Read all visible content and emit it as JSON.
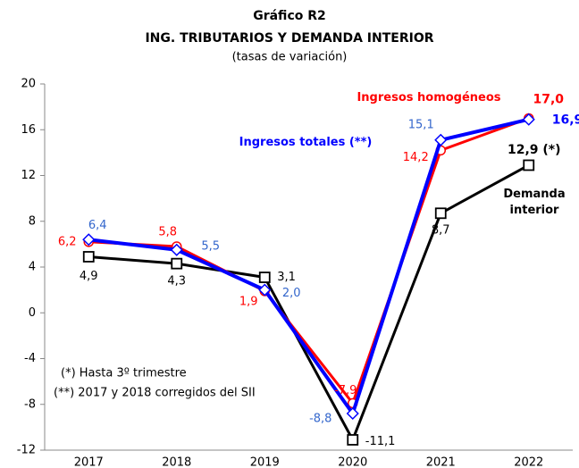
{
  "chart_data": {
    "type": "line",
    "title": "Gráfico R2",
    "subtitle": "ING. TRIBUTARIOS Y DEMANDA INTERIOR",
    "y_label": "(tasas de variación)",
    "categories": [
      "2017",
      "2018",
      "2019",
      "2020",
      "2021",
      "2022"
    ],
    "ylim": [
      -12,
      20
    ],
    "yticks": [
      -12,
      -8,
      -4,
      0,
      4,
      8,
      12,
      16,
      20
    ],
    "grid": false,
    "series": [
      {
        "name": "Ingresos homogéneos",
        "color": "#ff0000",
        "marker": "circle",
        "values": [
          6.2,
          5.8,
          1.9,
          -7.9,
          14.2,
          17.0
        ],
        "value_labels": [
          "6,2",
          "5,8",
          "1,9",
          "-7,9",
          "14,2",
          "17,0"
        ]
      },
      {
        "name": "Ingresos totales (**)",
        "color": "#0000ff",
        "marker": "diamond",
        "values": [
          6.4,
          5.5,
          2.0,
          -8.8,
          15.1,
          16.9
        ],
        "value_labels": [
          "6,4",
          "5,5",
          "2,0",
          "-8,8",
          "15,1",
          "16,9"
        ]
      },
      {
        "name": "Demanda interior",
        "color": "#000000",
        "marker": "square",
        "values": [
          4.9,
          4.3,
          3.1,
          -11.1,
          8.7,
          12.9
        ],
        "value_labels": [
          "4,9",
          "4,3",
          "3,1",
          "-11,1",
          "8,7",
          "12,9 (*)"
        ]
      }
    ],
    "annotations": [
      "(*) Hasta 3º  trimestre",
      "(**) 2017 y 2018 corregidos del SII"
    ]
  }
}
